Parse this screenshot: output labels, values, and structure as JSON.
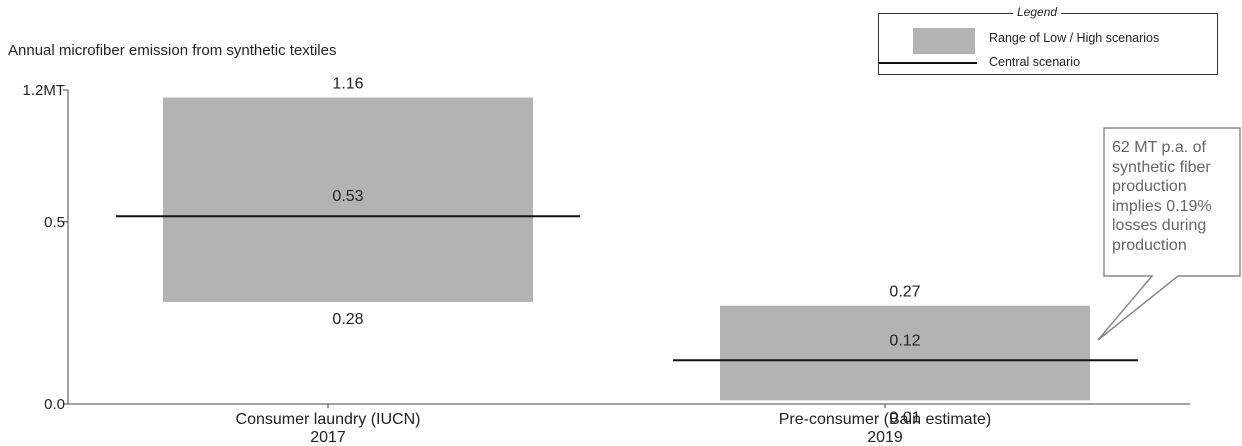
{
  "chart_data": {
    "type": "range-bar",
    "title": "Annual microfiber emission from synthetic textiles",
    "y_ticks": [
      "1.2MT",
      "0.5",
      "0.0"
    ],
    "y_tick_values": [
      1.2,
      0.5,
      0.0
    ],
    "ylim": [
      0,
      1.2
    ],
    "y_scale": "piecewise (0.5 tick placed at ~0.58 of axis height)",
    "categories": [
      {
        "name": "Consumer laundry (IUCN)",
        "year": "2017",
        "low": 0.28,
        "central": 0.53,
        "high": 1.16,
        "low_label": "0.28",
        "central_label": "0.53",
        "high_label": "1.16"
      },
      {
        "name": "Pre-consumer (Bain estimate)",
        "year": "2019",
        "low": 0.01,
        "central": 0.12,
        "high": 0.27,
        "low_label": "0.01",
        "central_label": "0.12",
        "high_label": "0.27"
      }
    ],
    "legend": {
      "title": "Legend",
      "position": "top-right",
      "range_label": "Range of Low / High scenarios",
      "central_label": "Central scenario"
    },
    "callout": {
      "lines": [
        "62 MT p.a. of",
        "synthetic fiber",
        "production",
        "implies 0.19%",
        "losses during",
        "production"
      ]
    },
    "colors": {
      "range_fill": "#b3b3b3",
      "central_line": "#111111",
      "callout_text": "#666666",
      "callout_border": "#888888"
    }
  }
}
